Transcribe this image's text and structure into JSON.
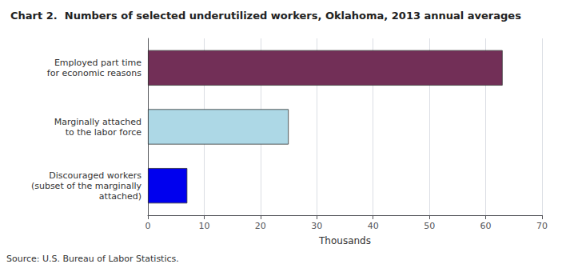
{
  "chart_data": {
    "type": "bar",
    "orientation": "horizontal",
    "title": "Chart 2.  Numbers of selected underutilized workers, Oklahoma, 2013 annual averages",
    "categories": [
      "Discouraged workers\n(subset of the marginally\nattached)",
      "Marginally attached\nto the labor force",
      "Employed part time\nfor economic reasons"
    ],
    "values": [
      7,
      25,
      63
    ],
    "colors": [
      "#0000EE",
      "#ADD8E6",
      "#722F57"
    ],
    "xlabel": "Thousands",
    "xlim": [
      0,
      70
    ],
    "xticks": [
      0,
      10,
      20,
      30,
      40,
      50,
      60,
      70
    ],
    "grid": true,
    "annotations": [
      "Source: U.S. Bureau of Labor Statistics."
    ]
  }
}
